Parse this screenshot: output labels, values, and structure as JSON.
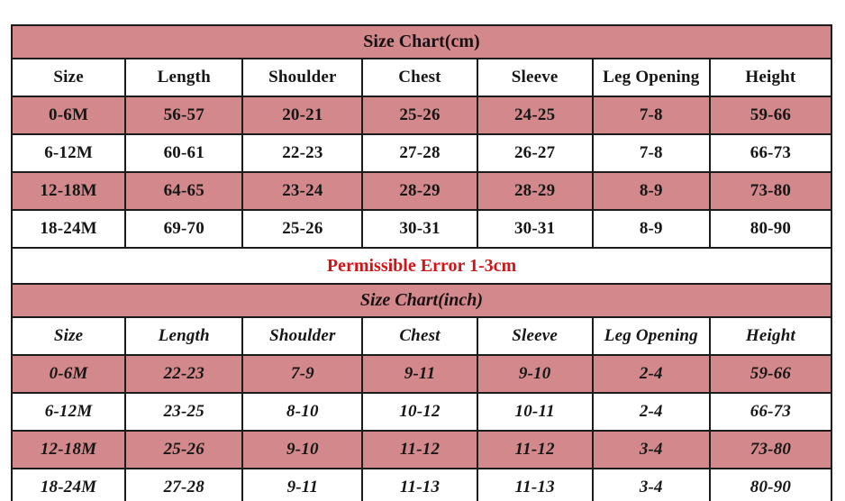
{
  "colors": {
    "pink": "#d3898c",
    "red": "#d01418",
    "border": "#1b1b1b",
    "text": "#161616"
  },
  "cm_table": {
    "title": "Size Chart(cm)",
    "headers": [
      "Size",
      "Length",
      "Shoulder",
      "Chest",
      "Sleeve",
      "Leg Opening",
      "Height"
    ],
    "rows": [
      {
        "shaded": true,
        "cells": [
          "0-6M",
          "56-57",
          "20-21",
          "25-26",
          "24-25",
          "7-8",
          "59-66"
        ]
      },
      {
        "shaded": false,
        "cells": [
          "6-12M",
          "60-61",
          "22-23",
          "27-28",
          "26-27",
          "7-8",
          "66-73"
        ]
      },
      {
        "shaded": true,
        "cells": [
          "12-18M",
          "64-65",
          "23-24",
          "28-29",
          "28-29",
          "8-9",
          "73-80"
        ]
      },
      {
        "shaded": false,
        "cells": [
          "18-24M",
          "69-70",
          "25-26",
          "30-31",
          "30-31",
          "8-9",
          "80-90"
        ]
      }
    ],
    "note": "Permissible Error 1-3cm"
  },
  "inch_table": {
    "title": "Size Chart(inch)",
    "headers": [
      "Size",
      "Length",
      "Shoulder",
      "Chest",
      "Sleeve",
      "Leg Opening",
      "Height"
    ],
    "rows": [
      {
        "shaded": true,
        "cells": [
          "0-6M",
          "22-23",
          "7-9",
          "9-11",
          "9-10",
          "2-4",
          "59-66"
        ]
      },
      {
        "shaded": false,
        "cells": [
          "6-12M",
          "23-25",
          "8-10",
          "10-12",
          "10-11",
          "2-4",
          "66-73"
        ]
      },
      {
        "shaded": true,
        "cells": [
          "12-18M",
          "25-26",
          "9-10",
          "11-12",
          "11-12",
          "3-4",
          "73-80"
        ]
      },
      {
        "shaded": false,
        "cells": [
          "18-24M",
          "27-28",
          "9-11",
          "11-13",
          "11-13",
          "3-4",
          "80-90"
        ]
      }
    ]
  },
  "chart_data": [
    {
      "type": "table",
      "title": "Size Chart(cm)",
      "columns": [
        "Size",
        "Length",
        "Shoulder",
        "Chest",
        "Sleeve",
        "Leg Opening",
        "Height"
      ],
      "rows": [
        [
          "0-6M",
          "56-57",
          "20-21",
          "25-26",
          "24-25",
          "7-8",
          "59-66"
        ],
        [
          "6-12M",
          "60-61",
          "22-23",
          "27-28",
          "26-27",
          "7-8",
          "66-73"
        ],
        [
          "12-18M",
          "64-65",
          "23-24",
          "28-29",
          "28-29",
          "8-9",
          "73-80"
        ],
        [
          "18-24M",
          "69-70",
          "25-26",
          "30-31",
          "30-31",
          "8-9",
          "80-90"
        ]
      ],
      "annotations": [
        "Permissible Error 1-3cm"
      ]
    },
    {
      "type": "table",
      "title": "Size Chart(inch)",
      "columns": [
        "Size",
        "Length",
        "Shoulder",
        "Chest",
        "Sleeve",
        "Leg Opening",
        "Height"
      ],
      "rows": [
        [
          "0-6M",
          "22-23",
          "7-9",
          "9-11",
          "9-10",
          "2-4",
          "59-66"
        ],
        [
          "6-12M",
          "23-25",
          "8-10",
          "10-12",
          "10-11",
          "2-4",
          "66-73"
        ],
        [
          "12-18M",
          "25-26",
          "9-10",
          "11-12",
          "11-12",
          "3-4",
          "73-80"
        ],
        [
          "18-24M",
          "27-28",
          "9-11",
          "11-13",
          "11-13",
          "3-4",
          "80-90"
        ]
      ]
    }
  ]
}
